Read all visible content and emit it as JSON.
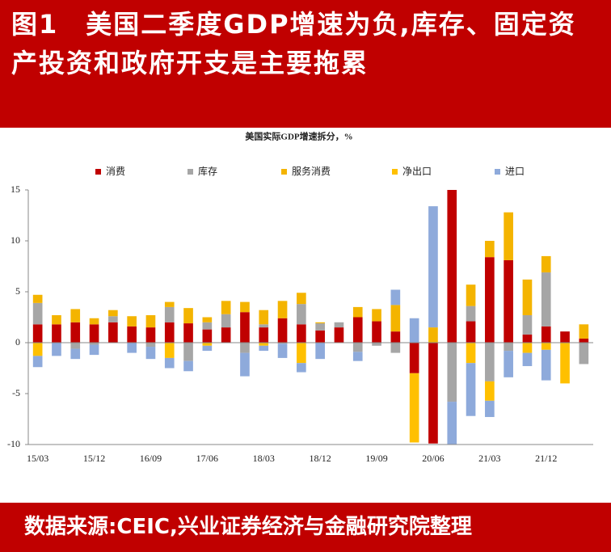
{
  "header": {
    "title": "图1　美国二季度GDP增速为负,库存、固定资产投资和政府开支是主要拖累"
  },
  "chart_data": {
    "type": "bar",
    "stacked": true,
    "title": "美国实际GDP增速拆分，%",
    "categories": [
      "15/03",
      null,
      null,
      "15/12",
      null,
      null,
      "16/09",
      null,
      null,
      "17/06",
      null,
      null,
      "18/03",
      null,
      null,
      "18/12",
      null,
      null,
      "19/09",
      null,
      null,
      "20/06",
      null,
      null,
      "21/03",
      null,
      null,
      "21/12",
      null,
      null
    ],
    "series": [
      {
        "name": "消费",
        "color": "#c00000",
        "values": [
          1.8,
          1.8,
          2.0,
          1.8,
          2.0,
          1.6,
          1.5,
          2.0,
          1.9,
          1.3,
          1.5,
          3.0,
          1.5,
          2.4,
          1.8,
          1.2,
          1.5,
          2.5,
          2.1,
          1.1,
          -3.0,
          -9.9,
          15.0,
          2.1,
          8.4,
          8.1,
          0.8,
          1.6,
          1.1,
          0.4
        ]
      },
      {
        "name": "库存",
        "color": "#a6a6a6",
        "values": [
          2.1,
          0,
          -0.6,
          -0.2,
          0.6,
          0,
          -0.4,
          1.5,
          -1.8,
          0.7,
          1.3,
          -1.0,
          0.3,
          -0.1,
          2.0,
          0.7,
          0.5,
          -0.9,
          -0.3,
          -1.0,
          0,
          0,
          -5.8,
          1.5,
          -3.8,
          -0.8,
          1.9,
          5.3,
          0,
          -2.1
        ]
      },
      {
        "name": "服务消费",
        "color": "#f4b400",
        "values": [
          0.8,
          0.9,
          1.3,
          0.6,
          0.6,
          1.0,
          1.2,
          0.5,
          1.5,
          0.5,
          1.3,
          1.0,
          1.4,
          1.7,
          1.1,
          0.1,
          0,
          1.0,
          1.2,
          2.6,
          0,
          1.5,
          0,
          2.1,
          1.6,
          4.7,
          3.5,
          1.6,
          0,
          1.4
        ]
      },
      {
        "name": "净出口",
        "color": "#ffc000",
        "values": [
          -1.3,
          0,
          0,
          0,
          0,
          0,
          0,
          -1.5,
          0,
          -0.3,
          0,
          0,
          -0.3,
          0,
          -2.0,
          0,
          0,
          0,
          0,
          0,
          -6.8,
          0,
          0,
          -2.0,
          -1.9,
          0,
          -1.0,
          -0.7,
          -4.0,
          0
        ]
      },
      {
        "name": "进口",
        "color": "#8eaadb",
        "values": [
          -1.1,
          -1.3,
          -1.0,
          -1.0,
          0,
          -1.0,
          -1.2,
          -1.0,
          -1.0,
          -0.5,
          0,
          -2.3,
          -0.5,
          -1.4,
          -0.9,
          -1.6,
          0,
          -0.9,
          0,
          1.5,
          2.4,
          11.9,
          -4.2,
          -5.2,
          -1.6,
          -2.6,
          -1.3,
          -3.0,
          0,
          0
        ]
      }
    ],
    "ylim": [
      -10,
      15
    ],
    "yticks": [
      -10,
      -5,
      0,
      5,
      10,
      15
    ],
    "legend": "top"
  },
  "footer": {
    "source": "数据来源:CEIC,兴业证券经济与金融研究院整理"
  }
}
